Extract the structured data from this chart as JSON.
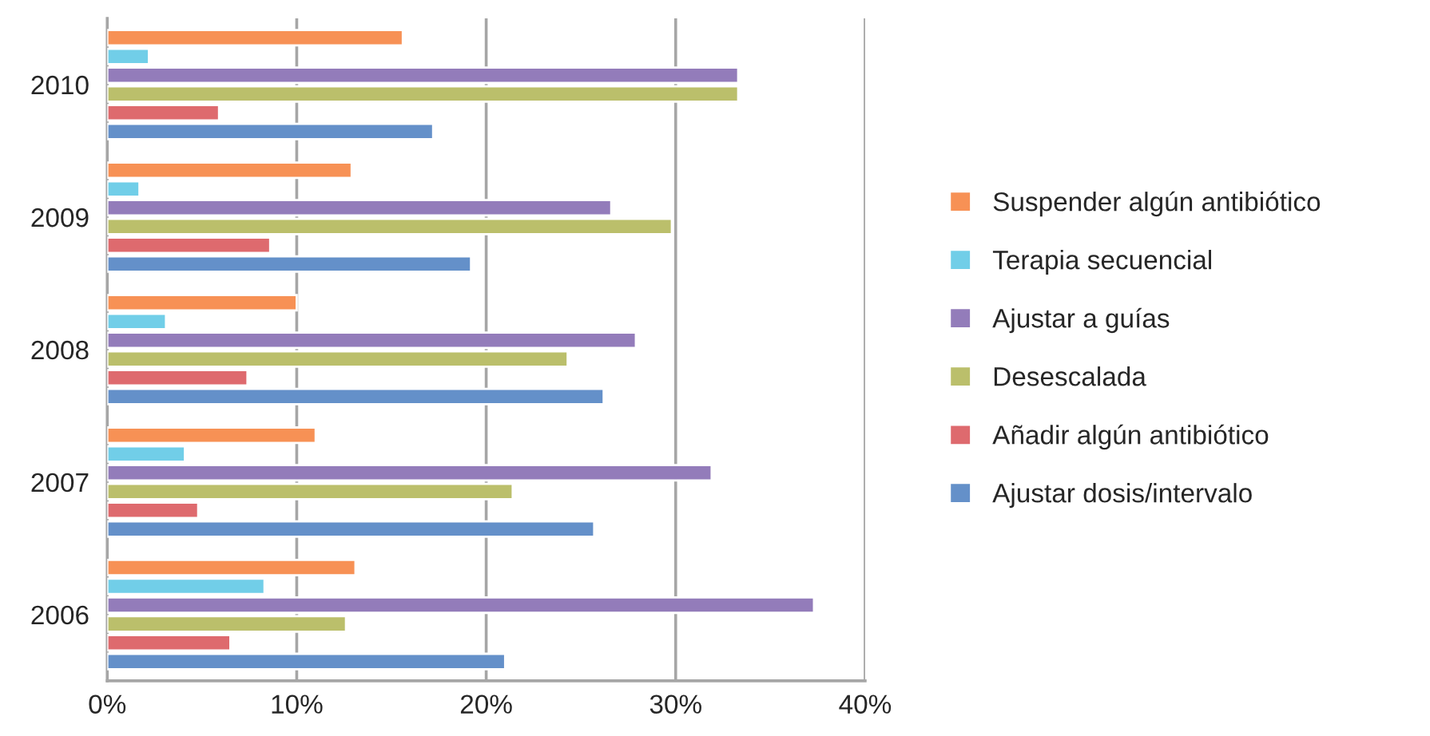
{
  "chart_data": {
    "type": "bar",
    "orientation": "horizontal",
    "categories": [
      "2010",
      "2009",
      "2008",
      "2007",
      "2006"
    ],
    "series": [
      {
        "name": "Suspender algún antibiótico",
        "color": "#f79155",
        "values": [
          15.6,
          12.9,
          10.0,
          11.0,
          13.1
        ]
      },
      {
        "name": "Terapia secuencial",
        "color": "#71cee8",
        "values": [
          2.2,
          1.7,
          3.1,
          4.1,
          8.3
        ]
      },
      {
        "name": "Ajustar a guías",
        "color": "#937cba",
        "values": [
          33.3,
          26.6,
          27.9,
          31.9,
          37.3
        ]
      },
      {
        "name": "Desescalada",
        "color": "#bbbf6b",
        "values": [
          33.3,
          29.8,
          24.3,
          21.4,
          12.6
        ]
      },
      {
        "name": "Añadir algún antibiótico",
        "color": "#de6a6e",
        "values": [
          5.9,
          8.6,
          7.4,
          4.8,
          6.5
        ]
      },
      {
        "name": "Ajustar dosis/intervalo",
        "color": "#6490c9",
        "values": [
          17.2,
          19.2,
          26.2,
          25.7,
          21.0
        ]
      }
    ],
    "xlim": [
      0,
      40
    ],
    "xticks": [
      {
        "value": 0,
        "label": "0%"
      },
      {
        "value": 10,
        "label": "10%"
      },
      {
        "value": 20,
        "label": "20%"
      },
      {
        "value": 30,
        "label": "30%"
      },
      {
        "value": 40,
        "label": "40%"
      }
    ],
    "grid": "x",
    "legend": "right"
  }
}
